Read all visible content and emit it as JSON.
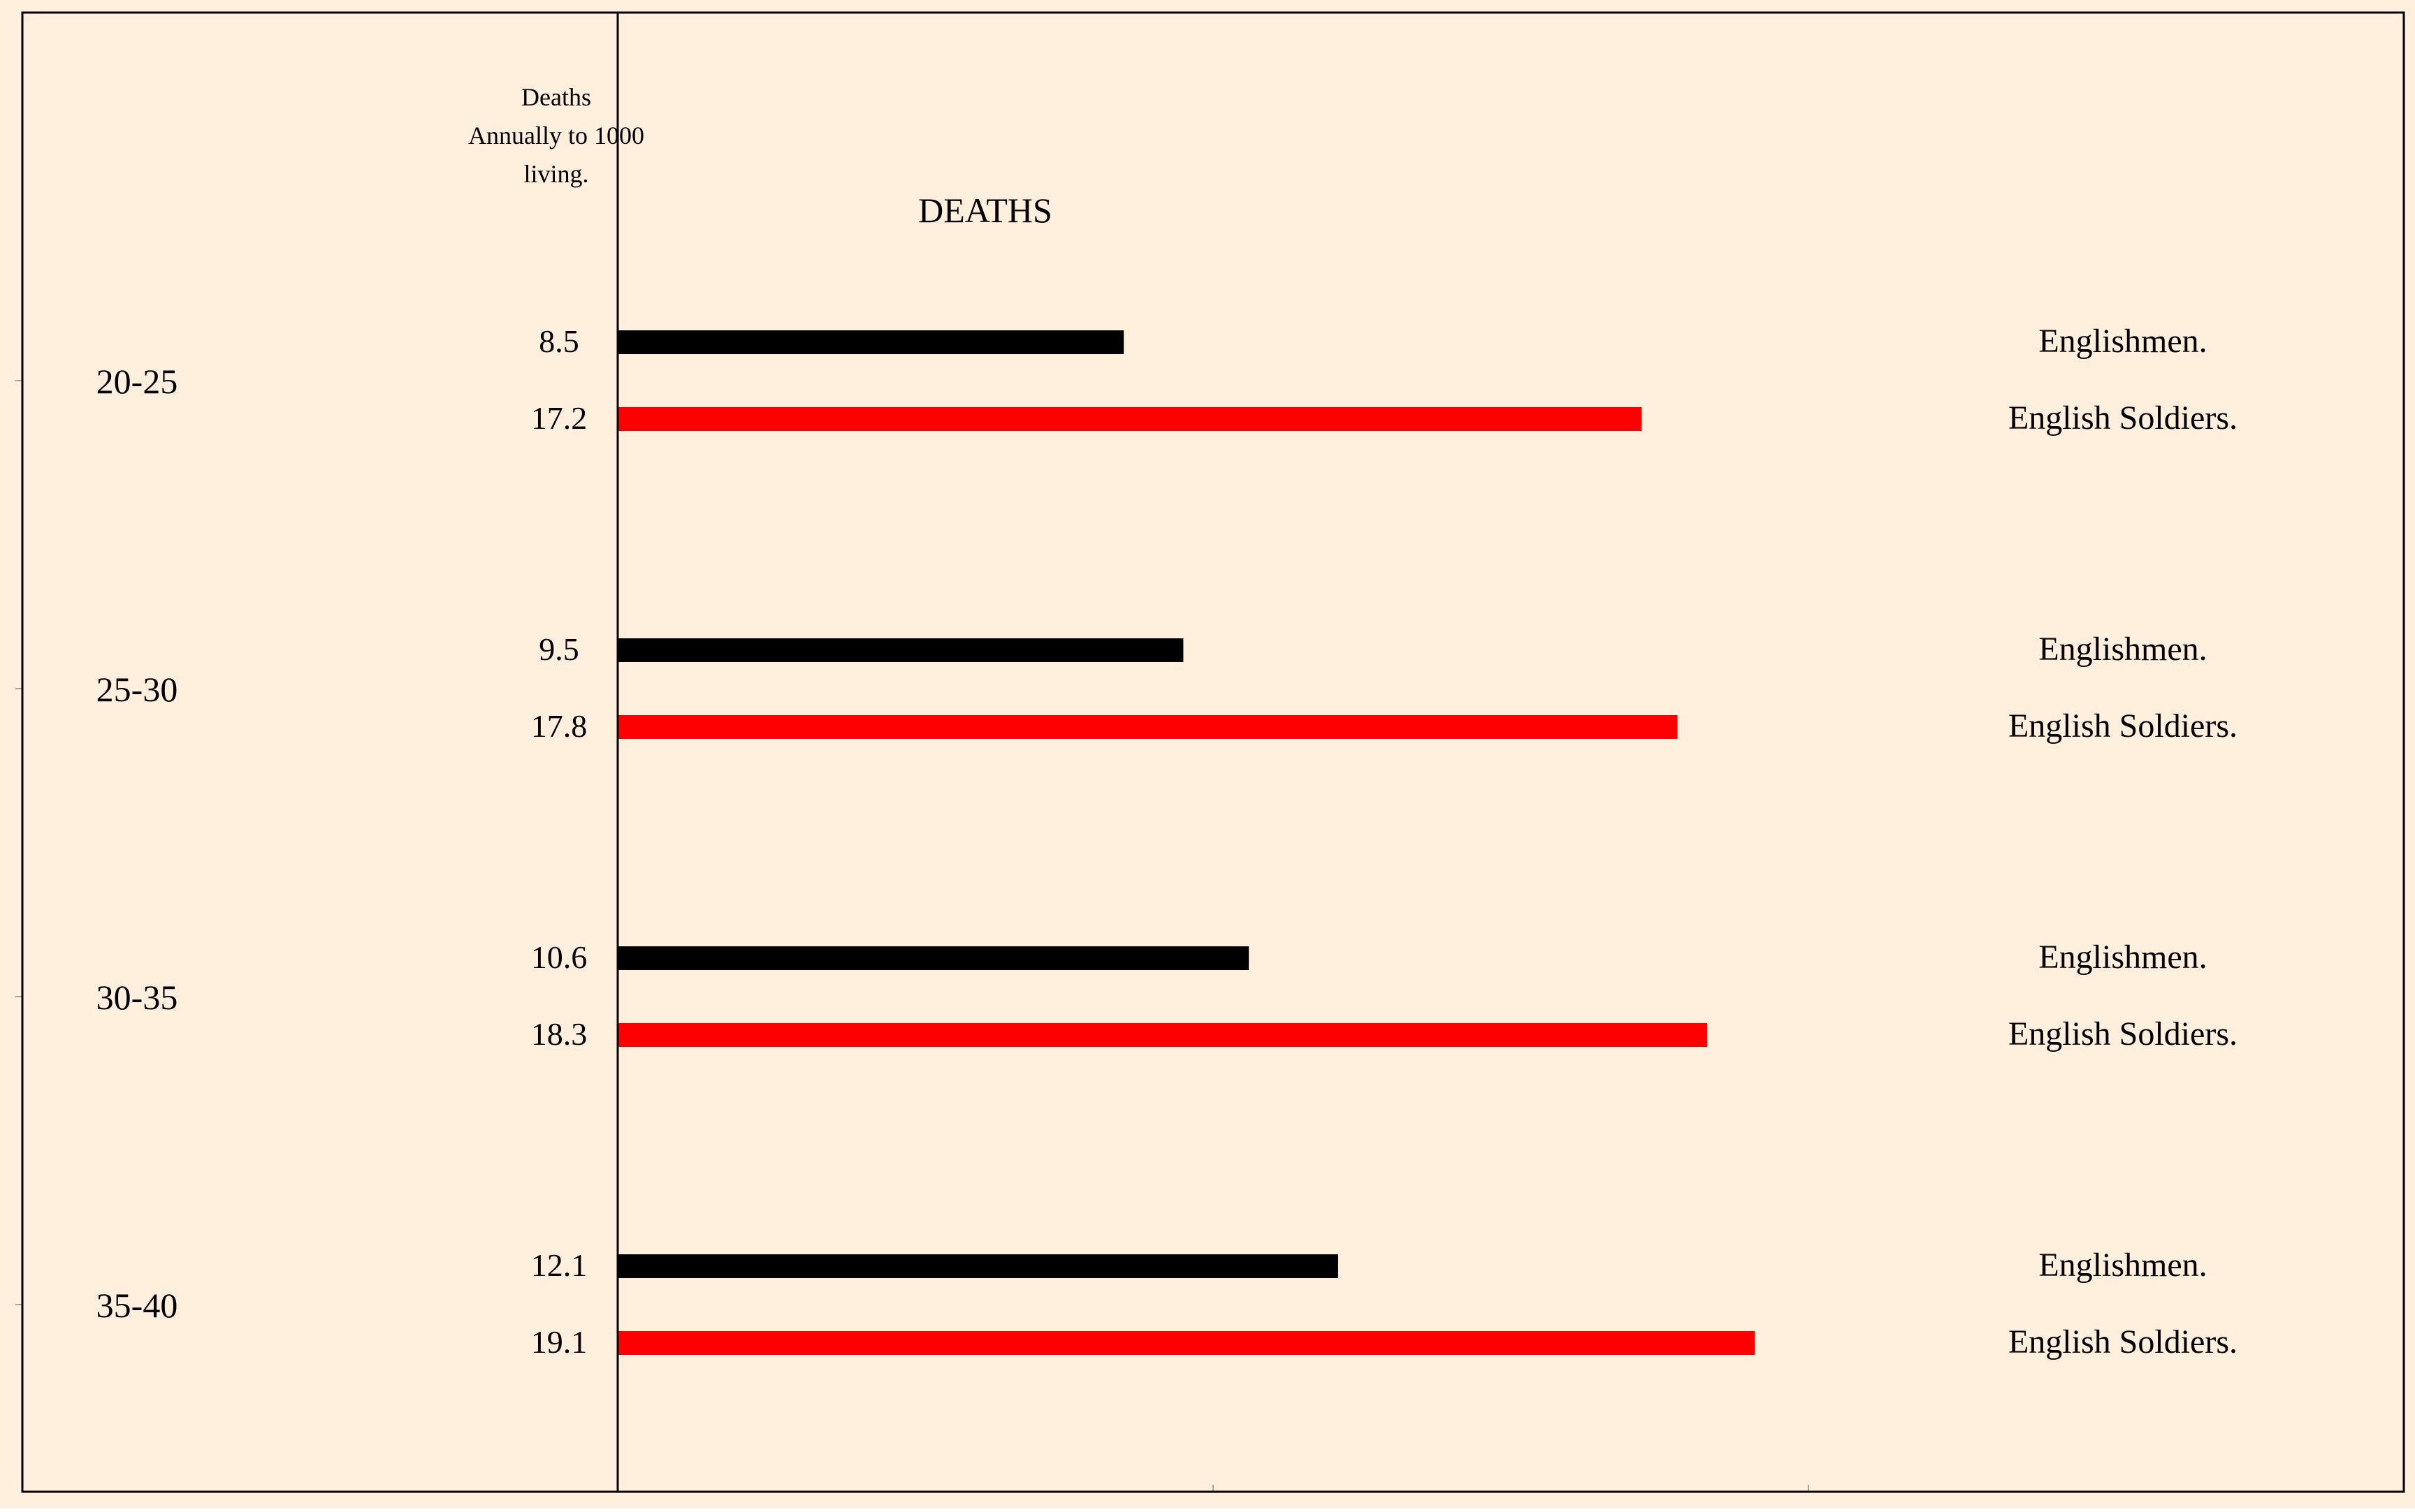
{
  "colors": {
    "background": "#FFEFDC",
    "frame": "#000000",
    "englishmen": "#000000",
    "soldiers": "#FF0000"
  },
  "chart_data": {
    "type": "bar",
    "orientation": "horizontal",
    "title": "DEATHS",
    "ylabel": "Deaths Annually to 1000 living.",
    "ylabel_lines": [
      "Deaths",
      "Annually to 1000",
      "living."
    ],
    "xlim": [
      -10,
      30
    ],
    "categories": [
      "20-25",
      "25-30",
      "30-35",
      "35-40"
    ],
    "series": [
      {
        "name": "Englishmen.",
        "values": [
          8.5,
          9.5,
          10.6,
          12.1
        ]
      },
      {
        "name": "English Soldiers.",
        "values": [
          17.2,
          17.8,
          18.3,
          19.1
        ]
      }
    ],
    "value_labels": [
      [
        "8.5",
        "9.5",
        "10.6",
        "12.1"
      ],
      [
        "17.2",
        "17.8",
        "18.3",
        "19.1"
      ]
    ],
    "grid": false,
    "legend": "per-bar labels at right"
  }
}
